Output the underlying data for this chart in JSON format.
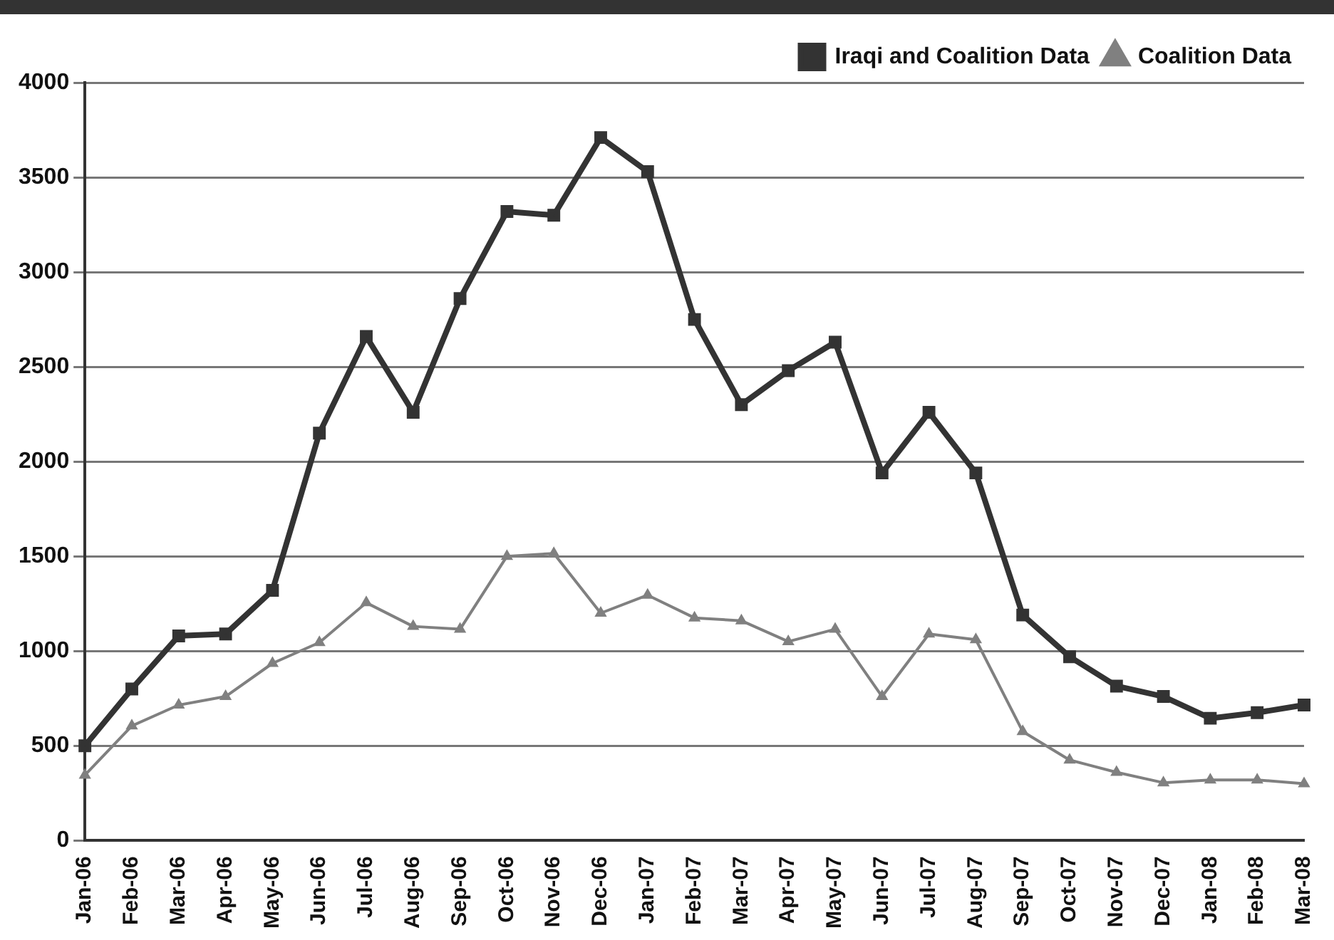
{
  "chart_data": {
    "type": "line",
    "categories": [
      "Jan-06",
      "Feb-06",
      "Mar-06",
      "Apr-06",
      "May-06",
      "Jun-06",
      "Jul-06",
      "Aug-06",
      "Sep-06",
      "Oct-06",
      "Nov-06",
      "Dec-06",
      "Jan-07",
      "Feb-07",
      "Mar-07",
      "Apr-07",
      "May-07",
      "Jun-07",
      "Jul-07",
      "Aug-07",
      "Sep-07",
      "Oct-07",
      "Nov-07",
      "Dec-07",
      "Jan-08",
      "Feb-08",
      "Mar-08"
    ],
    "series": [
      {
        "name": "Iraqi and Coalition Data",
        "color": "#333333",
        "marker": "square",
        "values": [
          500,
          800,
          1080,
          1090,
          1320,
          2150,
          2660,
          2260,
          2860,
          3320,
          3300,
          3710,
          3530,
          2750,
          2300,
          2480,
          2630,
          1940,
          2260,
          1940,
          1190,
          970,
          815,
          760,
          645,
          675,
          715
        ]
      },
      {
        "name": "Coalition Data",
        "color": "#808080",
        "marker": "triangle",
        "values": [
          345,
          605,
          715,
          760,
          935,
          1045,
          1255,
          1130,
          1115,
          1500,
          1515,
          1200,
          1295,
          1175,
          1160,
          1050,
          1115,
          760,
          1090,
          1060,
          575,
          425,
          360,
          305,
          320,
          320,
          300
        ]
      }
    ],
    "ylim": [
      0,
      4000
    ],
    "yticks": [
      0,
      500,
      1000,
      1500,
      2000,
      2500,
      3000,
      3500,
      4000
    ],
    "grid": "y",
    "legend": "top right",
    "line_style": "solid"
  }
}
